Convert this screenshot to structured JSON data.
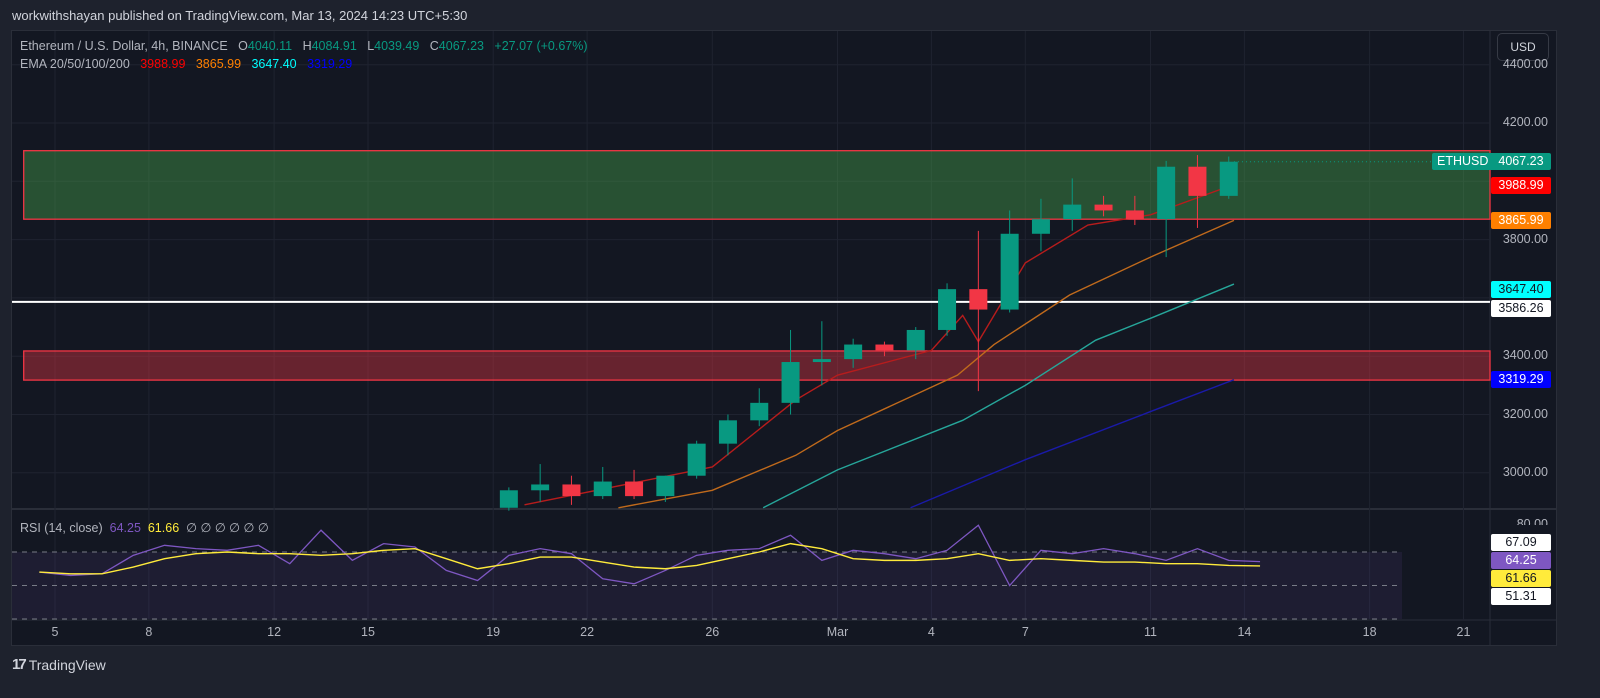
{
  "publisher": "workwithshayan published on TradingView.com, Mar 13, 2024 14:23 UTC+5:30",
  "currency_button": "USD",
  "footer": {
    "brand": "TradingView"
  },
  "legend": {
    "symbol": "Ethereum / U.S. Dollar, 4h, BINANCE",
    "o_label": "O",
    "o": "4040.11",
    "h_label": "H",
    "h": "4084.91",
    "l_label": "L",
    "l": "4039.49",
    "c_label": "C",
    "c": "4067.23",
    "change": "+27.07 (+0.67%)",
    "ema_label": "EMA 20/50/100/200",
    "ema20": "3988.99",
    "ema50": "3865.99",
    "ema100": "3647.40",
    "ema200": "3319.29",
    "rsi_label": "RSI (14, close)",
    "rsi": "64.25",
    "rsi_ma": "61.66",
    "rsi_extra": "∅ ∅ ∅ ∅ ∅ ∅"
  },
  "price_tags": {
    "symbol": "ETHUSD",
    "last": "4067.23",
    "ema20": "3988.99",
    "ema50": "3865.99",
    "ema100": "3647.40",
    "hline": "3586.26",
    "ema200": "3319.29"
  },
  "rsi_tags": {
    "upper": "67.09",
    "rsi": "64.25",
    "ma": "61.66",
    "lower": "51.31",
    "top_tick": "80.00"
  },
  "colors": {
    "up": "#089981",
    "down": "#f23645",
    "ema20": "#ff0000",
    "ema50": "#ff8000",
    "ema100": "#00bcd4",
    "ema200": "#0000ff",
    "rsi": "#7e57c2",
    "rsi_ma": "#ffeb3b",
    "supply_zone": "#4caf50",
    "demand_zone": "#f23645",
    "hline": "#ffffff"
  },
  "chart_data": {
    "type": "candlestick",
    "title": "Ethereum / U.S. Dollar, 4h, BINANCE",
    "ylim": [
      2880,
      4460
    ],
    "y_ticks": [
      "4400.00",
      "4200.00",
      "3800.00",
      "3400.00",
      "3200.00",
      "3000.00"
    ],
    "x_ticks": [
      {
        "date": "2024-02-05",
        "label": "5"
      },
      {
        "date": "2024-02-08",
        "label": "8"
      },
      {
        "date": "2024-02-12",
        "label": "12"
      },
      {
        "date": "2024-02-15",
        "label": "15"
      },
      {
        "date": "2024-02-19",
        "label": "19"
      },
      {
        "date": "2024-02-22",
        "label": "22"
      },
      {
        "date": "2024-02-26",
        "label": "26"
      },
      {
        "date": "2024-03-01",
        "label": "Mar"
      },
      {
        "date": "2024-03-04",
        "label": "4"
      },
      {
        "date": "2024-03-07",
        "label": "7"
      },
      {
        "date": "2024-03-11",
        "label": "11"
      },
      {
        "date": "2024-03-14",
        "label": "14"
      },
      {
        "date": "2024-03-18",
        "label": "18"
      },
      {
        "date": "2024-03-21",
        "label": "21"
      }
    ],
    "candles": [
      {
        "date": "2024-02-19",
        "o": 2880,
        "h": 2950,
        "l": 2870,
        "c": 2940
      },
      {
        "date": "2024-02-20",
        "o": 2940,
        "h": 3030,
        "l": 2900,
        "c": 2960
      },
      {
        "date": "2024-02-21",
        "o": 2960,
        "h": 2990,
        "l": 2890,
        "c": 2920
      },
      {
        "date": "2024-02-22",
        "o": 2920,
        "h": 3020,
        "l": 2910,
        "c": 2970
      },
      {
        "date": "2024-02-23",
        "o": 2970,
        "h": 3010,
        "l": 2910,
        "c": 2920
      },
      {
        "date": "2024-02-24",
        "o": 2920,
        "h": 2990,
        "l": 2900,
        "c": 2990
      },
      {
        "date": "2024-02-25",
        "o": 2990,
        "h": 3110,
        "l": 2980,
        "c": 3100
      },
      {
        "date": "2024-02-26",
        "o": 3100,
        "h": 3200,
        "l": 3060,
        "c": 3180
      },
      {
        "date": "2024-02-27",
        "o": 3180,
        "h": 3290,
        "l": 3160,
        "c": 3240
      },
      {
        "date": "2024-02-28",
        "o": 3240,
        "h": 3490,
        "l": 3200,
        "c": 3380
      },
      {
        "date": "2024-02-29",
        "o": 3380,
        "h": 3520,
        "l": 3300,
        "c": 3390
      },
      {
        "date": "2024-03-01",
        "o": 3390,
        "h": 3460,
        "l": 3360,
        "c": 3440
      },
      {
        "date": "2024-03-02",
        "o": 3440,
        "h": 3450,
        "l": 3400,
        "c": 3420
      },
      {
        "date": "2024-03-03",
        "o": 3420,
        "h": 3500,
        "l": 3390,
        "c": 3490
      },
      {
        "date": "2024-03-04",
        "o": 3490,
        "h": 3650,
        "l": 3470,
        "c": 3630
      },
      {
        "date": "2024-03-05",
        "o": 3630,
        "h": 3830,
        "l": 3280,
        "c": 3560
      },
      {
        "date": "2024-03-06",
        "o": 3560,
        "h": 3900,
        "l": 3550,
        "c": 3820
      },
      {
        "date": "2024-03-07",
        "o": 3820,
        "h": 3940,
        "l": 3760,
        "c": 3870
      },
      {
        "date": "2024-03-08",
        "o": 3870,
        "h": 4010,
        "l": 3830,
        "c": 3920
      },
      {
        "date": "2024-03-09",
        "o": 3920,
        "h": 3950,
        "l": 3880,
        "c": 3900
      },
      {
        "date": "2024-03-10",
        "o": 3900,
        "h": 3950,
        "l": 3850,
        "c": 3870
      },
      {
        "date": "2024-03-11",
        "o": 3870,
        "h": 4070,
        "l": 3740,
        "c": 4050
      },
      {
        "date": "2024-03-12",
        "o": 4050,
        "h": 4090,
        "l": 3840,
        "c": 3950
      },
      {
        "date": "2024-03-13",
        "o": 3950,
        "h": 4085,
        "l": 3940,
        "c": 4067.23
      }
    ],
    "ema": [
      {
        "name": "EMA 20",
        "points": [
          [
            "2024-02-20",
            2890
          ],
          [
            "2024-02-26",
            3020
          ],
          [
            "2024-02-28T16:00",
            3250
          ],
          [
            "2024-03-01",
            3335
          ],
          [
            "2024-03-04",
            3420
          ],
          [
            "2024-03-05",
            3540
          ],
          [
            "2024-03-05T12:00",
            3450
          ],
          [
            "2024-03-07",
            3720
          ],
          [
            "2024-03-09",
            3850
          ],
          [
            "2024-03-11",
            3885
          ],
          [
            "2024-03-13T16:00",
            3988.99
          ]
        ]
      },
      {
        "name": "EMA 50",
        "points": [
          [
            "2024-02-23",
            2880
          ],
          [
            "2024-02-26",
            2940
          ],
          [
            "2024-02-28T16:00",
            3060
          ],
          [
            "2024-03-01",
            3145
          ],
          [
            "2024-03-04T20:00",
            3335
          ],
          [
            "2024-03-06",
            3440
          ],
          [
            "2024-03-08T10:00",
            3610
          ],
          [
            "2024-03-11",
            3740
          ],
          [
            "2024-03-13T16:00",
            3865.99
          ]
        ]
      },
      {
        "name": "EMA 100",
        "points": [
          [
            "2024-02-27T15:00",
            2880
          ],
          [
            "2024-03-01",
            3010
          ],
          [
            "2024-03-05",
            3180
          ],
          [
            "2024-03-07",
            3300
          ],
          [
            "2024-03-09T06:00",
            3455
          ],
          [
            "2024-03-11",
            3530
          ],
          [
            "2024-03-13T16:00",
            3647.4
          ]
        ]
      },
      {
        "name": "EMA 200",
        "points": [
          [
            "2024-03-03T08:00",
            2880
          ],
          [
            "2024-03-07",
            3045
          ],
          [
            "2024-03-11",
            3210
          ],
          [
            "2024-03-13T16:00",
            3319.29
          ]
        ]
      }
    ],
    "zones": [
      {
        "kind": "supply",
        "top": 4105,
        "bottom": 3870,
        "from": "2024-02-04",
        "to": "2024-03-25"
      },
      {
        "kind": "demand",
        "top": 3418,
        "bottom": 3318,
        "from": "2024-02-04",
        "to": "2024-03-23"
      }
    ],
    "hline": 3586.26,
    "rsi": {
      "ylim": [
        30,
        70
      ],
      "bands": [
        70,
        50,
        30
      ],
      "dates_from": "2024-02-04",
      "values": [
        58,
        56,
        57,
        68,
        74,
        72,
        71,
        74,
        63,
        83,
        65,
        75,
        73,
        59,
        53,
        68,
        72,
        69,
        54,
        51,
        59,
        68,
        71,
        72,
        80,
        65,
        71,
        69,
        66,
        71,
        86,
        50,
        71,
        69,
        72,
        69,
        65,
        72,
        65,
        64.25
      ],
      "ma": [
        58,
        57,
        57,
        61,
        66,
        69,
        70,
        69,
        69,
        68,
        69,
        71,
        72,
        66,
        60,
        63,
        67,
        67,
        64,
        61,
        60,
        62,
        66,
        70,
        75,
        72,
        66,
        65,
        65,
        66,
        69,
        65,
        66,
        65,
        64,
        64,
        63,
        63,
        62,
        61.66
      ]
    }
  }
}
